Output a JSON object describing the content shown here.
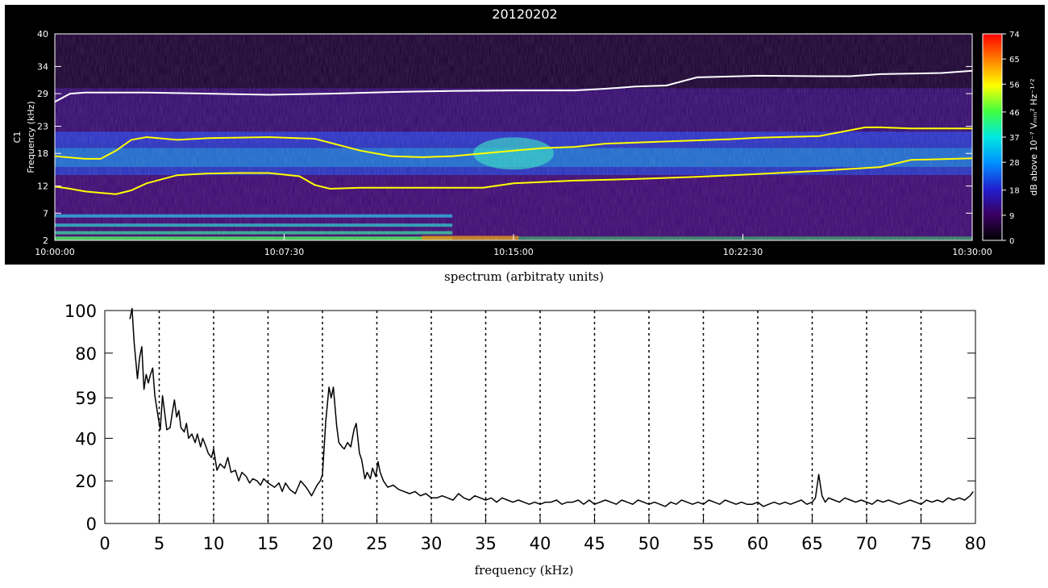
{
  "chart_data": [
    {
      "type": "heatmap",
      "title": "20120202",
      "ylabel_lines": [
        "C1",
        "Frequency (kHz)"
      ],
      "y_ticks": [
        "2",
        "7",
        "12",
        "18",
        "23",
        "29",
        "34",
        "40"
      ],
      "x_ticks": [
        "10:00:00",
        "10:07:30",
        "10:15:00",
        "10:22:30",
        "10:30:00"
      ],
      "xlim": [
        "10:00:00",
        "10:30:00"
      ],
      "ylim": [
        2,
        40
      ],
      "colorbar": {
        "label": "dB above 10⁻⁷ Vₘₘ² Hz⁻¹ᐟ²",
        "ticks": [
          "0",
          "9",
          "18",
          "28",
          "37",
          "46",
          "56",
          "65",
          "74"
        ],
        "range": [
          0,
          74
        ],
        "colors": [
          "#000000",
          "#3a0060",
          "#2020d0",
          "#0090ff",
          "#00e8e0",
          "#40ff40",
          "#ffff00",
          "#ff8000",
          "#ff0000"
        ]
      },
      "series": [
        {
          "color": "#ffffff",
          "x": [
            "10:00:00",
            "10:00:30",
            "10:01:00",
            "10:03:00",
            "10:05:00",
            "10:07:00",
            "10:09:00",
            "10:11:00",
            "10:13:00",
            "10:15:00",
            "10:17:00",
            "10:18:00",
            "10:19:00",
            "10:20:00",
            "10:21:00",
            "10:23:00",
            "10:25:00",
            "10:26:00",
            "10:27:00",
            "10:29:00",
            "10:30:00"
          ],
          "y": [
            27.5,
            29.0,
            29.2,
            29.2,
            29.0,
            28.8,
            29.0,
            29.3,
            29.5,
            29.6,
            29.6,
            29.9,
            30.3,
            30.5,
            32.0,
            32.3,
            32.2,
            32.2,
            32.6,
            32.8,
            33.2
          ]
        },
        {
          "color": "#ffff00",
          "x": [
            "10:00:00",
            "10:01:00",
            "10:01:30",
            "10:02:00",
            "10:02:30",
            "10:03:00",
            "10:04:00",
            "10:05:00",
            "10:07:00",
            "10:08:30",
            "10:10:00",
            "10:11:00",
            "10:12:00",
            "10:13:00",
            "10:15:00",
            "10:16:00",
            "10:17:00",
            "10:18:00",
            "10:20:00",
            "10:22:00",
            "10:23:00",
            "10:25:00",
            "10:26:30",
            "10:27:00",
            "10:28:00",
            "10:30:00"
          ],
          "y": [
            17.5,
            17.0,
            17.0,
            18.5,
            20.5,
            21.0,
            20.5,
            20.8,
            21.0,
            20.7,
            18.5,
            17.5,
            17.3,
            17.5,
            18.5,
            19.0,
            19.2,
            19.8,
            20.2,
            20.6,
            20.9,
            21.2,
            22.8,
            22.8,
            22.6,
            22.6
          ]
        },
        {
          "color": "#ffff00",
          "x": [
            "10:00:00",
            "10:00:30",
            "10:01:00",
            "10:02:00",
            "10:02:30",
            "10:03:00",
            "10:04:00",
            "10:05:00",
            "10:06:00",
            "10:07:00",
            "10:08:00",
            "10:08:30",
            "10:09:00",
            "10:10:00",
            "10:12:00",
            "10:14:00",
            "10:15:00",
            "10:17:00",
            "10:19:00",
            "10:21:00",
            "10:23:00",
            "10:25:00",
            "10:27:00",
            "10:28:00",
            "10:30:00"
          ],
          "y": [
            11.9,
            11.5,
            11.0,
            10.5,
            11.2,
            12.5,
            14.0,
            14.3,
            14.4,
            14.4,
            13.8,
            12.2,
            11.5,
            11.7,
            11.7,
            11.7,
            12.5,
            13.0,
            13.3,
            13.7,
            14.2,
            14.8,
            15.5,
            16.8,
            17.1
          ]
        }
      ]
    },
    {
      "type": "line",
      "title": "spectrum (arbitraty  units)",
      "xlabel": "frequency (kHz)",
      "xlim": [
        0,
        80
      ],
      "ylim": [
        0,
        100
      ],
      "x_ticks": [
        "0",
        "5",
        "10",
        "15",
        "20",
        "25",
        "30",
        "35",
        "40",
        "45",
        "50",
        "55",
        "60",
        "65",
        "70",
        "75",
        "80"
      ],
      "y_ticks": [
        "0",
        "20",
        "40",
        "59",
        "80",
        "100"
      ],
      "y_tick_values": [
        0,
        20,
        40,
        59,
        80,
        100
      ],
      "vlines": [
        5,
        10,
        15,
        20,
        25,
        30,
        35,
        40,
        45,
        50,
        55,
        60,
        65,
        70,
        75
      ],
      "series": [
        {
          "x": [
            2.3,
            2.5,
            2.7,
            3.0,
            3.2,
            3.4,
            3.6,
            3.8,
            4.0,
            4.2,
            4.4,
            4.6,
            4.9,
            5.1,
            5.3,
            5.5,
            5.7,
            6.0,
            6.2,
            6.4,
            6.6,
            6.8,
            7.0,
            7.3,
            7.5,
            7.7,
            8.0,
            8.3,
            8.5,
            8.8,
            9.0,
            9.3,
            9.5,
            9.8,
            10.0,
            10.3,
            10.6,
            11.0,
            11.3,
            11.6,
            12.0,
            12.3,
            12.6,
            13.0,
            13.3,
            13.6,
            14.0,
            14.3,
            14.6,
            15.0,
            15.3,
            15.6,
            16.0,
            16.3,
            16.6,
            17.0,
            17.5,
            18.0,
            18.5,
            19.0,
            19.5,
            19.8,
            20.0,
            20.3,
            20.6,
            20.8,
            21.0,
            21.3,
            21.5,
            21.8,
            22.0,
            22.3,
            22.6,
            22.9,
            23.1,
            23.4,
            23.6,
            23.9,
            24.1,
            24.4,
            24.6,
            24.9,
            25.1,
            25.3,
            25.6,
            26.0,
            26.5,
            27.0,
            27.5,
            28.0,
            28.5,
            29.0,
            29.5,
            30.0,
            30.5,
            31.0,
            31.5,
            32.0,
            32.5,
            33.0,
            33.5,
            34.0,
            34.5,
            35.0,
            35.5,
            36.0,
            36.5,
            37.0,
            37.5,
            38.0,
            38.5,
            39.0,
            39.5,
            40.0,
            40.5,
            41.0,
            41.5,
            42.0,
            42.5,
            43.0,
            43.5,
            44.0,
            44.5,
            45.0,
            45.5,
            46.0,
            46.5,
            47.0,
            47.5,
            48.0,
            48.5,
            49.0,
            49.5,
            50.0,
            50.5,
            51.0,
            51.5,
            52.0,
            52.5,
            53.0,
            53.5,
            54.0,
            54.5,
            55.0,
            55.5,
            56.0,
            56.5,
            57.0,
            57.5,
            58.0,
            58.5,
            59.0,
            59.5,
            60.0,
            60.5,
            61.0,
            61.5,
            62.0,
            62.5,
            63.0,
            63.5,
            64.0,
            64.5,
            65.0,
            65.3,
            65.6,
            65.9,
            66.2,
            66.5,
            67.0,
            67.5,
            68.0,
            68.5,
            69.0,
            69.5,
            70.0,
            70.5,
            71.0,
            71.5,
            72.0,
            72.5,
            73.0,
            73.5,
            74.0,
            74.5,
            75.0,
            75.5,
            76.0,
            76.5,
            77.0,
            77.5,
            78.0,
            78.5,
            79.0,
            79.5,
            79.8
          ],
          "y": [
            96,
            101,
            85,
            68,
            78,
            83,
            63,
            70,
            66,
            70,
            73,
            60,
            50,
            44,
            60,
            52,
            44,
            45,
            52,
            58,
            50,
            53,
            45,
            43,
            47,
            40,
            42,
            38,
            42,
            36,
            40,
            36,
            33,
            31,
            35,
            25,
            28,
            26,
            31,
            24,
            25,
            20,
            24,
            22,
            19,
            21,
            20,
            18,
            21,
            19,
            18,
            17,
            19,
            15,
            19,
            16,
            14,
            20,
            17,
            13,
            18,
            20,
            23,
            48,
            64,
            59,
            64,
            46,
            38,
            36,
            35,
            38,
            36,
            44,
            47,
            33,
            30,
            21,
            24,
            21,
            26,
            22,
            29,
            24,
            20,
            17,
            18,
            16,
            15,
            14,
            15,
            13,
            14,
            12,
            12,
            13,
            12,
            11,
            14,
            12,
            11,
            13,
            12,
            11,
            12,
            10,
            12,
            11,
            10,
            11,
            10,
            9,
            10,
            9,
            10,
            10,
            11,
            9,
            10,
            10,
            11,
            9,
            11,
            9,
            10,
            11,
            10,
            9,
            11,
            10,
            9,
            11,
            10,
            9,
            10,
            9,
            8,
            10,
            9,
            11,
            10,
            9,
            10,
            9,
            11,
            10,
            9,
            11,
            10,
            9,
            10,
            9,
            9,
            10,
            8,
            9,
            10,
            9,
            10,
            9,
            10,
            11,
            9,
            10,
            12,
            23,
            13,
            10,
            12,
            11,
            10,
            12,
            11,
            10,
            11,
            10,
            9,
            11,
            10,
            11,
            10,
            9,
            10,
            11,
            10,
            9,
            11,
            10,
            11,
            10,
            12,
            11,
            12,
            11,
            13,
            15
          ]
        }
      ]
    }
  ]
}
